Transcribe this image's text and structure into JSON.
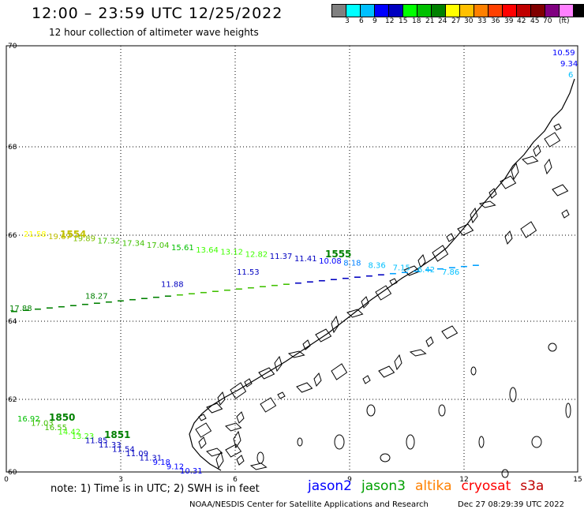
{
  "header": {
    "title": "12:00 – 23:59 UTC 12/25/2022",
    "subtitle": "12 hour collection of altimeter wave heights"
  },
  "legend": {
    "colors": [
      "#808080",
      "#00ffff",
      "#00c0ff",
      "#0000ff",
      "#0000c0",
      "#00ff00",
      "#00c000",
      "#008000",
      "#ffff00",
      "#ffc000",
      "#ff8000",
      "#ff4000",
      "#ff0000",
      "#c00000",
      "#800000",
      "#800080",
      "#ff80ff",
      "#000000"
    ],
    "labels": [
      "3",
      "6",
      "9",
      "12",
      "15",
      "18",
      "21",
      "24",
      "27",
      "30",
      "33",
      "36",
      "39",
      "42",
      "45",
      "70",
      "(ft)"
    ]
  },
  "axes": {
    "x_ticks": [
      "0",
      "3",
      "6",
      "9",
      "12",
      "15"
    ],
    "y_ticks": [
      "70",
      "68",
      "66",
      "64",
      "62",
      "60"
    ]
  },
  "tracks": [
    {
      "name": "upper",
      "time_label": "1554",
      "time_color": "#c0c000",
      "readings": [
        {
          "v": "21.58",
          "c": "#ffff00"
        },
        {
          "v": "19.67",
          "c": "#c0c000"
        },
        {
          "v": "19.89",
          "c": "#80c000"
        },
        {
          "v": "17.32",
          "c": "#40c000"
        },
        {
          "v": "17.34",
          "c": "#40c000"
        },
        {
          "v": "17.04",
          "c": "#40c000"
        },
        {
          "v": "15.61",
          "c": "#00c000"
        },
        {
          "v": "13.64",
          "c": "#40ff00"
        },
        {
          "v": "13.12",
          "c": "#40ff00"
        },
        {
          "v": "12.82",
          "c": "#40ff00"
        },
        {
          "v": "11.37",
          "c": "#0000c0"
        },
        {
          "v": "11.41",
          "c": "#0000c0"
        },
        {
          "v": "10.08",
          "c": "#0000ff"
        },
        {
          "v": "8.18",
          "c": "#0080ff"
        },
        {
          "v": "8.36",
          "c": "#00c0ff"
        },
        {
          "v": "7.15",
          "c": "#00c0ff"
        },
        {
          "v": "6.42",
          "c": "#00c0ff"
        },
        {
          "v": "7.86",
          "c": "#00c0ff"
        }
      ]
    },
    {
      "name": "middle",
      "time_label": "1555",
      "time_color": "#008000",
      "readings": [
        {
          "v": "17.88",
          "c": "#008000"
        },
        {
          "v": "18.27",
          "c": "#008000"
        },
        {
          "v": "11.88",
          "c": "#0000c0"
        },
        {
          "v": "11.53",
          "c": "#0000c0"
        }
      ]
    },
    {
      "name": "lower",
      "time_label_a": "1850",
      "time_label_b": "1851",
      "time_color": "#008000",
      "readings": [
        {
          "v": "16.92",
          "c": "#00c000"
        },
        {
          "v": "17.03",
          "c": "#40c000"
        },
        {
          "v": "16.55",
          "c": "#40c000"
        },
        {
          "v": "14.42",
          "c": "#40ff00"
        },
        {
          "v": "13.23",
          "c": "#40ff00"
        },
        {
          "v": "11.85",
          "c": "#0000c0"
        },
        {
          "v": "11.33",
          "c": "#0000c0"
        },
        {
          "v": "11.54",
          "c": "#0000c0"
        },
        {
          "v": "11.09",
          "c": "#0000c0"
        },
        {
          "v": "11.31",
          "c": "#0000c0"
        },
        {
          "v": "9.18",
          "c": "#0000ff"
        },
        {
          "v": "9.12",
          "c": "#0000ff"
        },
        {
          "v": "10.31",
          "c": "#0000ff"
        }
      ]
    },
    {
      "name": "corner",
      "readings": [
        {
          "v": "10.59",
          "c": "#0000ff"
        },
        {
          "v": "9.34",
          "c": "#0000ff"
        },
        {
          "v": "6",
          "c": "#00c0ff"
        }
      ]
    }
  ],
  "footer": {
    "note": "note: 1) Time is in UTC; 2) SWH is in feet",
    "satellites": [
      {
        "name": "jason2",
        "color": "#0000ff"
      },
      {
        "name": "jason3",
        "color": "#00a000"
      },
      {
        "name": "altika",
        "color": "#ff8000"
      },
      {
        "name": "cryosat",
        "color": "#ff0000"
      },
      {
        "name": "s3a",
        "color": "#c00000"
      }
    ],
    "credit": "NOAA/NESDIS Center for Satellite Applications and Research",
    "timestamp": "Dec 27 08:29:39 UTC 2022"
  }
}
